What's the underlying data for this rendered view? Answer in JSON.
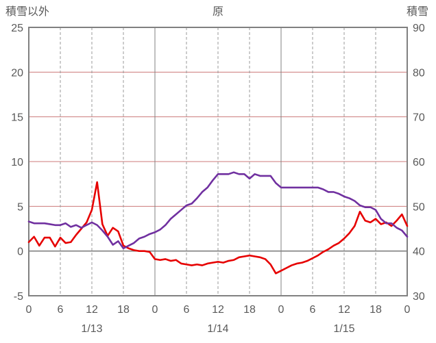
{
  "chart_data": {
    "type": "line",
    "title": "原",
    "left_axis": {
      "label": "積雪以外",
      "min": -5,
      "max": 25,
      "ticks": [
        25,
        20,
        15,
        10,
        5,
        0,
        -5
      ]
    },
    "right_axis": {
      "label": "積雪",
      "min": 30,
      "max": 90,
      "ticks": [
        90,
        80,
        70,
        60,
        50,
        40,
        30
      ]
    },
    "x": {
      "hours_total": 72,
      "tick_interval": 6,
      "tick_labels": [
        "0",
        "6",
        "12",
        "18",
        "0",
        "6",
        "12",
        "18",
        "0",
        "6",
        "12",
        "18",
        "0"
      ],
      "day_labels": [
        "1/13",
        "1/14",
        "1/15"
      ]
    },
    "series": [
      {
        "id": "red-series",
        "name": "積雪以外",
        "axis": "left",
        "color": "#e60000",
        "values": [
          1.0,
          1.6,
          0.6,
          1.5,
          1.5,
          0.5,
          1.5,
          0.9,
          1.0,
          1.8,
          2.5,
          3.2,
          4.6,
          7.7,
          3.0,
          1.7,
          2.6,
          2.2,
          0.6,
          0.3,
          0.1,
          0.0,
          0.0,
          -0.1,
          -0.9,
          -1.0,
          -0.9,
          -1.1,
          -1.0,
          -1.4,
          -1.5,
          -1.6,
          -1.5,
          -1.6,
          -1.4,
          -1.3,
          -1.2,
          -1.3,
          -1.1,
          -1.0,
          -0.7,
          -0.6,
          -0.5,
          -0.6,
          -0.7,
          -0.9,
          -1.5,
          -2.5,
          -2.2,
          -1.9,
          -1.6,
          -1.4,
          -1.3,
          -1.1,
          -0.8,
          -0.5,
          -0.1,
          0.2,
          0.6,
          0.9,
          1.4,
          2.0,
          2.8,
          4.4,
          3.4,
          3.2,
          3.6,
          3.0,
          3.2,
          2.8,
          3.4,
          4.1,
          2.8
        ]
      },
      {
        "id": "purple-series",
        "name": "積雪",
        "axis": "right",
        "color": "#7030a0",
        "values": [
          46.6,
          46.2,
          46.2,
          46.2,
          46.0,
          45.8,
          45.8,
          46.2,
          45.4,
          45.8,
          45.2,
          45.8,
          46.4,
          45.8,
          44.6,
          43.2,
          41.4,
          42.2,
          40.6,
          41.2,
          41.8,
          42.8,
          43.2,
          43.8,
          44.2,
          44.8,
          45.8,
          47.2,
          48.2,
          49.2,
          50.2,
          50.6,
          51.8,
          53.2,
          54.2,
          55.8,
          57.2,
          57.2,
          57.2,
          57.6,
          57.2,
          57.2,
          56.2,
          57.2,
          56.8,
          56.8,
          56.8,
          55.2,
          54.2,
          54.2,
          54.2,
          54.2,
          54.2,
          54.2,
          54.2,
          54.2,
          53.8,
          53.2,
          53.2,
          52.8,
          52.2,
          51.8,
          51.2,
          50.2,
          49.8,
          49.8,
          49.2,
          47.2,
          46.2,
          46.2,
          45.2,
          44.6,
          43.2
        ]
      }
    ],
    "colors": {
      "h_grid": "#cc7a7a",
      "v_grid": "#999999",
      "zero_line": "#808080",
      "border": "#808080",
      "text": "#595959"
    },
    "grid": true,
    "legend": "none"
  }
}
